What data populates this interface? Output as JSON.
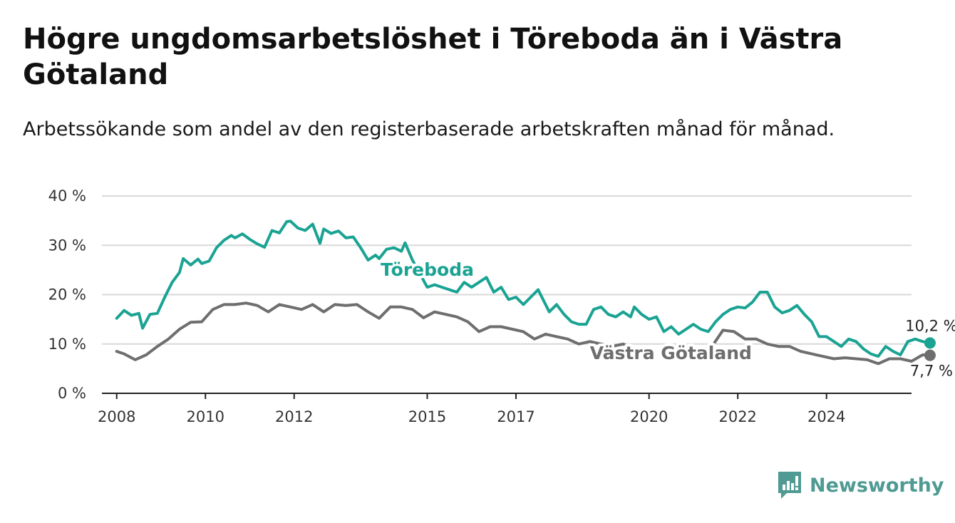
{
  "title": "Högre ungdomsarbetslöshet i Töreboda än i Västra Götaland",
  "subtitle": "Arbetssökande som andel av den registerbaserade arbetskraften månad för månad.",
  "brand": {
    "name": "Newsworthy",
    "icon": "newsworthy-logo-icon",
    "color": "#4f9a93"
  },
  "chart_data": {
    "type": "line",
    "x_type": "date",
    "x_ticks": [
      "2008",
      "2010",
      "2012",
      "2015",
      "2017",
      "2020",
      "2022",
      "2024"
    ],
    "y_ticks": [
      "0 %",
      "10 %",
      "20 %",
      "30 %",
      "40 %"
    ],
    "ylim": [
      0,
      40
    ],
    "xlim": [
      "2007-09",
      "2025-12"
    ],
    "grid": true,
    "series": [
      {
        "name": "Töreboda",
        "color": "#1aa393",
        "end_label": "10,2 %",
        "points": [
          [
            "2008-01",
            15.2
          ],
          [
            "2008-03",
            16.8
          ],
          [
            "2008-05",
            15.8
          ],
          [
            "2008-07",
            16.2
          ],
          [
            "2008-08",
            13.2
          ],
          [
            "2008-10",
            16.0
          ],
          [
            "2008-12",
            16.2
          ],
          [
            "2009-02",
            19.5
          ],
          [
            "2009-04",
            22.5
          ],
          [
            "2009-06",
            24.5
          ],
          [
            "2009-07",
            27.3
          ],
          [
            "2009-09",
            26.0
          ],
          [
            "2009-11",
            27.2
          ],
          [
            "2009-12",
            26.3
          ],
          [
            "2010-02",
            26.8
          ],
          [
            "2010-04",
            29.5
          ],
          [
            "2010-06",
            31.0
          ],
          [
            "2010-08",
            32.0
          ],
          [
            "2010-09",
            31.5
          ],
          [
            "2010-11",
            32.3
          ],
          [
            "2011-01",
            31.2
          ],
          [
            "2011-03",
            30.3
          ],
          [
            "2011-05",
            29.6
          ],
          [
            "2011-07",
            33.0
          ],
          [
            "2011-09",
            32.5
          ],
          [
            "2011-11",
            34.8
          ],
          [
            "2011-12",
            34.9
          ],
          [
            "2012-02",
            33.5
          ],
          [
            "2012-04",
            33.0
          ],
          [
            "2012-06",
            34.3
          ],
          [
            "2012-08",
            30.4
          ],
          [
            "2012-09",
            33.3
          ],
          [
            "2012-11",
            32.4
          ],
          [
            "2013-01",
            32.9
          ],
          [
            "2013-03",
            31.5
          ],
          [
            "2013-05",
            31.7
          ],
          [
            "2013-07",
            29.5
          ],
          [
            "2013-09",
            27.0
          ],
          [
            "2013-11",
            28.0
          ],
          [
            "2013-12",
            27.3
          ],
          [
            "2014-02",
            29.2
          ],
          [
            "2014-04",
            29.5
          ],
          [
            "2014-06",
            28.8
          ],
          [
            "2014-07",
            30.5
          ],
          [
            "2014-09",
            27.0
          ],
          [
            "2015-01",
            21.5
          ],
          [
            "2015-03",
            22.0
          ],
          [
            "2015-09",
            20.5
          ],
          [
            "2015-11",
            22.5
          ],
          [
            "2016-01",
            21.5
          ],
          [
            "2016-03",
            22.5
          ],
          [
            "2016-05",
            23.5
          ],
          [
            "2016-07",
            20.5
          ],
          [
            "2016-09",
            21.5
          ],
          [
            "2016-11",
            19.0
          ],
          [
            "2017-01",
            19.5
          ],
          [
            "2017-03",
            18.0
          ],
          [
            "2017-05",
            19.5
          ],
          [
            "2017-07",
            21.0
          ],
          [
            "2017-08",
            19.5
          ],
          [
            "2017-10",
            16.5
          ],
          [
            "2017-12",
            18.0
          ],
          [
            "2018-02",
            16.0
          ],
          [
            "2018-04",
            14.5
          ],
          [
            "2018-06",
            14.0
          ],
          [
            "2018-08",
            14.0
          ],
          [
            "2018-10",
            17.0
          ],
          [
            "2018-12",
            17.5
          ],
          [
            "2019-02",
            16.0
          ],
          [
            "2019-04",
            15.5
          ],
          [
            "2019-06",
            16.5
          ],
          [
            "2019-08",
            15.5
          ],
          [
            "2019-09",
            17.5
          ],
          [
            "2019-11",
            16.0
          ],
          [
            "2020-01",
            15.0
          ],
          [
            "2020-03",
            15.5
          ],
          [
            "2020-05",
            12.5
          ],
          [
            "2020-07",
            13.5
          ],
          [
            "2020-09",
            12.0
          ],
          [
            "2020-11",
            13.0
          ],
          [
            "2021-01",
            14.0
          ],
          [
            "2021-03",
            13.0
          ],
          [
            "2021-05",
            12.5
          ],
          [
            "2021-07",
            14.5
          ],
          [
            "2021-09",
            16.0
          ],
          [
            "2021-11",
            17.0
          ],
          [
            "2022-01",
            17.5
          ],
          [
            "2022-03",
            17.3
          ],
          [
            "2022-05",
            18.5
          ],
          [
            "2022-07",
            20.5
          ],
          [
            "2022-09",
            20.5
          ],
          [
            "2022-11",
            17.5
          ],
          [
            "2023-01",
            16.3
          ],
          [
            "2023-03",
            16.8
          ],
          [
            "2023-05",
            17.8
          ],
          [
            "2023-07",
            16.0
          ],
          [
            "2023-09",
            14.5
          ],
          [
            "2023-11",
            11.5
          ],
          [
            "2024-01",
            11.5
          ],
          [
            "2024-03",
            10.5
          ],
          [
            "2024-05",
            9.5
          ],
          [
            "2024-07",
            11.0
          ],
          [
            "2024-09",
            10.5
          ],
          [
            "2024-11",
            9.0
          ],
          [
            "2025-01",
            8.0
          ],
          [
            "2025-03",
            7.5
          ],
          [
            "2025-05",
            9.5
          ],
          [
            "2025-07",
            8.5
          ],
          [
            "2025-09",
            7.8
          ],
          [
            "2025-11",
            10.5
          ],
          [
            "2026-01",
            11.0
          ],
          [
            "2026-03",
            10.5
          ],
          [
            "2026-05",
            10.2
          ]
        ]
      },
      {
        "name": "Västra Götaland",
        "color": "#6e6e6e",
        "end_label": "7,7 %",
        "points": [
          [
            "2008-01",
            8.5
          ],
          [
            "2008-03",
            8.0
          ],
          [
            "2008-06",
            6.8
          ],
          [
            "2008-09",
            7.8
          ],
          [
            "2008-12",
            9.5
          ],
          [
            "2009-03",
            11.0
          ],
          [
            "2009-06",
            13.0
          ],
          [
            "2009-09",
            14.4
          ],
          [
            "2009-12",
            14.5
          ],
          [
            "2010-03",
            17.0
          ],
          [
            "2010-06",
            18.0
          ],
          [
            "2010-09",
            18.0
          ],
          [
            "2010-12",
            18.3
          ],
          [
            "2011-03",
            17.8
          ],
          [
            "2011-06",
            16.5
          ],
          [
            "2011-09",
            18.0
          ],
          [
            "2011-12",
            17.5
          ],
          [
            "2012-03",
            17.0
          ],
          [
            "2012-06",
            18.0
          ],
          [
            "2012-09",
            16.5
          ],
          [
            "2012-12",
            18.0
          ],
          [
            "2013-03",
            17.8
          ],
          [
            "2013-06",
            18.0
          ],
          [
            "2013-09",
            16.5
          ],
          [
            "2013-12",
            15.2
          ],
          [
            "2014-03",
            17.5
          ],
          [
            "2014-06",
            17.5
          ],
          [
            "2014-09",
            17.0
          ],
          [
            "2014-12",
            15.3
          ],
          [
            "2015-03",
            16.5
          ],
          [
            "2015-06",
            16.0
          ],
          [
            "2015-09",
            15.5
          ],
          [
            "2015-12",
            14.5
          ],
          [
            "2016-03",
            12.5
          ],
          [
            "2016-06",
            13.5
          ],
          [
            "2016-09",
            13.5
          ],
          [
            "2016-12",
            13.0
          ],
          [
            "2017-03",
            12.5
          ],
          [
            "2017-06",
            11.0
          ],
          [
            "2017-09",
            12.0
          ],
          [
            "2017-12",
            11.5
          ],
          [
            "2018-03",
            11.0
          ],
          [
            "2018-06",
            10.0
          ],
          [
            "2018-09",
            10.5
          ],
          [
            "2018-12",
            10.0
          ],
          [
            "2019-03",
            9.5
          ],
          [
            "2019-06",
            10.0
          ],
          [
            "2019-09",
            9.0
          ],
          null,
          [
            "2021-06",
            9.5
          ],
          [
            "2021-09",
            12.8
          ],
          [
            "2021-12",
            12.5
          ],
          [
            "2022-03",
            11.0
          ],
          [
            "2022-06",
            11.0
          ],
          [
            "2022-09",
            10.0
          ],
          [
            "2022-12",
            9.5
          ],
          [
            "2023-03",
            9.5
          ],
          [
            "2023-06",
            8.5
          ],
          [
            "2023-09",
            8.0
          ],
          [
            "2023-12",
            7.5
          ],
          [
            "2024-03",
            7.0
          ],
          [
            "2024-06",
            7.2
          ],
          [
            "2024-09",
            7.0
          ],
          [
            "2024-12",
            6.8
          ],
          [
            "2025-03",
            6.0
          ],
          [
            "2025-06",
            7.0
          ],
          [
            "2025-09",
            7.0
          ],
          [
            "2025-12",
            6.5
          ],
          [
            "2026-03",
            7.8
          ],
          [
            "2026-05",
            7.7
          ]
        ]
      }
    ]
  }
}
